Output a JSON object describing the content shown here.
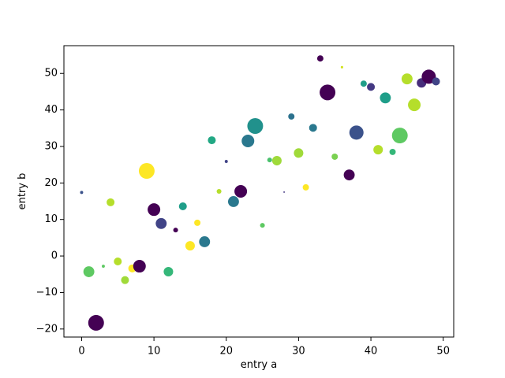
{
  "chart_data": {
    "type": "scatter",
    "x_label": "entry a",
    "y_label": "entry b",
    "x": [
      0,
      1,
      2,
      3,
      4,
      5,
      6,
      7,
      8,
      9,
      10,
      11,
      12,
      13,
      14,
      15,
      16,
      17,
      18,
      19,
      20,
      21,
      22,
      23,
      24,
      25,
      26,
      27,
      28,
      29,
      30,
      31,
      32,
      33,
      34,
      35,
      36,
      37,
      38,
      39,
      40,
      41,
      42,
      43,
      44,
      45,
      46,
      47,
      48,
      49
    ],
    "values": [
      17.4,
      -4.3,
      -18.3,
      -2.8,
      14.7,
      -1.5,
      -6.6,
      -3.4,
      -2.8,
      23.3,
      12.7,
      8.9,
      -4.3,
      7.1,
      13.6,
      2.8,
      9.1,
      3.9,
      31.7,
      17.7,
      25.9,
      14.9,
      17.7,
      31.5,
      35.6,
      8.4,
      26.3,
      26.1,
      17.5,
      38.2,
      28.2,
      18.8,
      35.1,
      54.1,
      44.8,
      27.2,
      51.7,
      22.2,
      33.8,
      47.2,
      46.3,
      29.1,
      43.3,
      28.5,
      33.0,
      48.5,
      41.4,
      47.4,
      49.1,
      47.8
    ],
    "sizes": [
      8,
      100,
      207,
      8,
      52,
      52,
      52,
      52,
      133,
      207,
      133,
      100,
      75,
      19,
      52,
      75,
      33,
      100,
      52,
      19,
      8,
      100,
      133,
      133,
      207,
      19,
      19,
      75,
      2,
      33,
      75,
      33,
      52,
      33,
      207,
      33,
      5,
      100,
      168,
      33,
      52,
      75,
      100,
      33,
      207,
      100,
      133,
      75,
      168,
      52
    ],
    "colors": [
      "#3b528b",
      "#5ec962",
      "#440154",
      "#5ec962",
      "#b5de2b",
      "#b5de2b",
      "#a0da39",
      "#fde725",
      "#440154",
      "#fde725",
      "#440154",
      "#414487",
      "#35b779",
      "#440154",
      "#1f9e89",
      "#fde725",
      "#fde725",
      "#2a788e",
      "#22a884",
      "#b5de2b",
      "#414487",
      "#2a788e",
      "#440154",
      "#2a788e",
      "#21918c",
      "#5ec962",
      "#4ac16d",
      "#9fda3a",
      "#443983",
      "#2c728e",
      "#a0da39",
      "#fde725",
      "#2a788e",
      "#440154",
      "#440154",
      "#7ad151",
      "#d2e21b",
      "#440154",
      "#3b528b",
      "#1f9e89",
      "#443983",
      "#b5de2b",
      "#1f9e89",
      "#35b779",
      "#5ec962",
      "#b5de2b",
      "#b5de2b",
      "#472d7b",
      "#440154",
      "#414487"
    ],
    "xlim": [
      -2.45,
      51.45
    ],
    "ylim": [
      -22.2,
      57.6
    ],
    "xticks": [
      0,
      10,
      20,
      30,
      40,
      50
    ],
    "yticks": [
      {
        "value": -20,
        "label": "−20"
      },
      {
        "value": -10,
        "label": "−10"
      },
      0,
      10,
      20,
      30,
      40,
      50
    ],
    "grid": false
  }
}
